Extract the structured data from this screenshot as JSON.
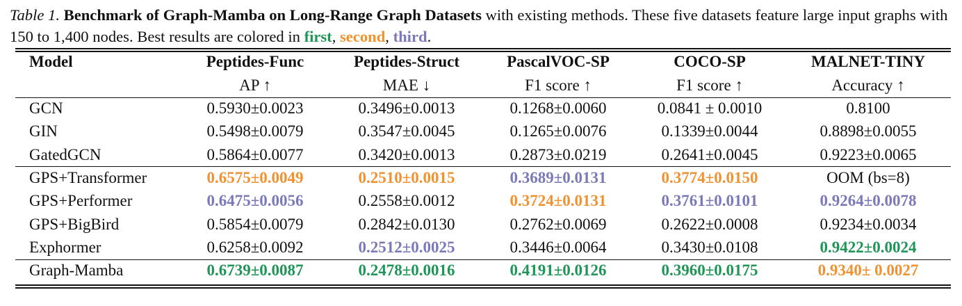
{
  "caption": {
    "label": "Table 1.",
    "title": "Benchmark of Graph-Mamba on Long-Range Graph Datasets",
    "text": " with existing methods. These five datasets feature large input graphs with 150 to 1,400 nodes. Best results are colored in ",
    "first": "first",
    "sep1": ", ",
    "second": "second",
    "sep2": ", ",
    "third": "third",
    "end": "."
  },
  "colors": {
    "first": "#1f9557",
    "second": "#f0922f",
    "third": "#7b79b8"
  },
  "table": {
    "headers": [
      {
        "name": "Model",
        "metric": ""
      },
      {
        "name": "Peptides-Func",
        "metric": "AP ↑"
      },
      {
        "name": "Peptides-Struct",
        "metric": "MAE ↓"
      },
      {
        "name": "PascalVOC-SP",
        "metric": "F1 score ↑"
      },
      {
        "name": "COCO-SP",
        "metric": "F1 score ↑"
      },
      {
        "name": "MALNET-TINY",
        "metric": "Accuracy ↑"
      }
    ],
    "rows": [
      {
        "model": "GCN",
        "cells": [
          {
            "v": "0.5930±0.0023",
            "h": ""
          },
          {
            "v": "0.3496±0.0013",
            "h": ""
          },
          {
            "v": "0.1268±0.0060",
            "h": ""
          },
          {
            "v": "0.0841 ± 0.0010",
            "h": ""
          },
          {
            "v": "0.8100",
            "h": ""
          }
        ]
      },
      {
        "model": "GIN",
        "cells": [
          {
            "v": "0.5498±0.0079",
            "h": ""
          },
          {
            "v": "0.3547±0.0045",
            "h": ""
          },
          {
            "v": "0.1265±0.0076",
            "h": ""
          },
          {
            "v": "0.1339±0.0044",
            "h": ""
          },
          {
            "v": "0.8898±0.0055",
            "h": ""
          }
        ]
      },
      {
        "model": "GatedGCN",
        "cells": [
          {
            "v": "0.5864±0.0077",
            "h": ""
          },
          {
            "v": "0.3420±0.0013",
            "h": ""
          },
          {
            "v": "0.2873±0.0219",
            "h": ""
          },
          {
            "v": "0.2641±0.0045",
            "h": ""
          },
          {
            "v": "0.9223±0.0065",
            "h": ""
          }
        ]
      },
      {
        "model": "GPS+Transformer",
        "cells": [
          {
            "v": "0.6575±0.0049",
            "h": "second"
          },
          {
            "v": "0.2510±0.0015",
            "h": "second"
          },
          {
            "v": "0.3689±0.0131",
            "h": "third"
          },
          {
            "v": "0.3774±0.0150",
            "h": "second"
          },
          {
            "v": "OOM (bs=8)",
            "h": ""
          }
        ]
      },
      {
        "model": "GPS+Performer",
        "cells": [
          {
            "v": "0.6475±0.0056",
            "h": "third"
          },
          {
            "v": "0.2558±0.0012",
            "h": ""
          },
          {
            "v": "0.3724±0.0131",
            "h": "second"
          },
          {
            "v": "0.3761±0.0101",
            "h": "third"
          },
          {
            "v": "0.9264±0.0078",
            "h": "third"
          }
        ]
      },
      {
        "model": "GPS+BigBird",
        "cells": [
          {
            "v": "0.5854±0.0079",
            "h": ""
          },
          {
            "v": "0.2842±0.0130",
            "h": ""
          },
          {
            "v": "0.2762±0.0069",
            "h": ""
          },
          {
            "v": "0.2622±0.0008",
            "h": ""
          },
          {
            "v": "0.9234±0.0034",
            "h": ""
          }
        ]
      },
      {
        "model": "Exphormer",
        "cells": [
          {
            "v": "0.6258±0.0092",
            "h": ""
          },
          {
            "v": "0.2512±0.0025",
            "h": "third"
          },
          {
            "v": "0.3446±0.0064",
            "h": ""
          },
          {
            "v": "0.3430±0.0108",
            "h": ""
          },
          {
            "v": "0.9422±0.0024",
            "h": "first"
          }
        ]
      },
      {
        "model": "Graph-Mamba",
        "cells": [
          {
            "v": "0.6739±0.0087",
            "h": "first"
          },
          {
            "v": "0.2478±0.0016",
            "h": "first"
          },
          {
            "v": "0.4191±0.0126",
            "h": "first"
          },
          {
            "v": "0.3960±0.0175",
            "h": "first"
          },
          {
            "v": "0.9340± 0.0027",
            "h": "second"
          }
        ]
      }
    ]
  }
}
